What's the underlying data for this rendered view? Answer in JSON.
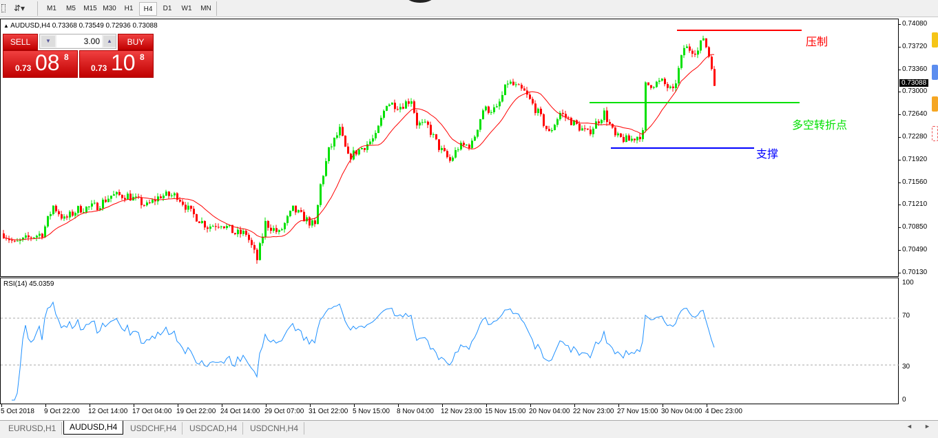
{
  "toolbar": {
    "timeframes": [
      "M1",
      "M5",
      "M15",
      "M30",
      "H1",
      "H4",
      "D1",
      "W1",
      "MN"
    ],
    "active": "H4"
  },
  "chart": {
    "info": "AUDUSD,H4  0.73368 0.73549 0.72936 0.73088",
    "current_price": "0.73088",
    "price_labels": [
      "0.74080",
      "0.73720",
      "0.73360",
      "0.73000",
      "0.72640",
      "0.72280",
      "0.71920",
      "0.71560",
      "0.71210",
      "0.70850",
      "0.70490",
      "0.70130"
    ],
    "time_labels": [
      "5 Oct 2018",
      "9 Oct 22:00",
      "12 Oct 14:00",
      "17 Oct 04:00",
      "19 Oct 22:00",
      "24 Oct 14:00",
      "29 Oct 07:00",
      "31 Oct 22:00",
      "5 Nov 15:00",
      "8 Nov 04:00",
      "12 Nov 23:00",
      "15 Nov 15:00",
      "20 Nov 04:00",
      "22 Nov 23:00",
      "27 Nov 15:00",
      "30 Nov 04:00",
      "4 Dec 23:00"
    ],
    "colors": {
      "bull": "#00e000",
      "bear": "#ff0000",
      "ma": "#ff0000",
      "rsi": "#1e90ff"
    },
    "annotations": [
      {
        "text": "压制",
        "color": "#ff0000",
        "price": 0.7397
      },
      {
        "text": "多空转折点",
        "color": "#00e000",
        "price": 0.72822
      },
      {
        "text": "支撑",
        "color": "#0000ff",
        "price": 0.721
      }
    ]
  },
  "trade_panel": {
    "sell_label": "SELL",
    "buy_label": "BUY",
    "lots": "3.00",
    "sell_prefix": "0.73",
    "sell_big": "08",
    "sell_sup": "8",
    "buy_prefix": "0.73",
    "buy_big": "10",
    "buy_sup": "8"
  },
  "rsi": {
    "label": "RSI(14) 45.0359",
    "levels": [
      "100",
      "70",
      "30",
      "0"
    ]
  },
  "chart_data": {
    "type": "candlestick",
    "symbol": "AUDUSD",
    "timeframe": "H4",
    "ylim": [
      0.7013,
      0.7408
    ],
    "price_path": [
      [
        0,
        0.70743
      ],
      [
        4,
        0.70579
      ],
      [
        10,
        0.70689
      ],
      [
        14,
        0.70743
      ],
      [
        18,
        0.71181
      ],
      [
        22,
        0.70962
      ],
      [
        27,
        0.71126
      ],
      [
        34,
        0.71181
      ],
      [
        39,
        0.71345
      ],
      [
        45,
        0.71345
      ],
      [
        52,
        0.71181
      ],
      [
        57,
        0.71345
      ],
      [
        63,
        0.71345
      ],
      [
        68,
        0.71071
      ],
      [
        74,
        0.70853
      ],
      [
        79,
        0.70907
      ],
      [
        84,
        0.70743
      ],
      [
        88,
        0.70743
      ],
      [
        92,
        0.70328
      ],
      [
        95,
        0.70907
      ],
      [
        100,
        0.70743
      ],
      [
        105,
        0.71126
      ],
      [
        113,
        0.70853
      ],
      [
        115,
        0.71509
      ],
      [
        118,
        0.72056
      ],
      [
        122,
        0.72384
      ],
      [
        125,
        0.71947
      ],
      [
        132,
        0.72165
      ],
      [
        135,
        0.72275
      ],
      [
        139,
        0.72822
      ],
      [
        144,
        0.72767
      ],
      [
        148,
        0.72877
      ],
      [
        150,
        0.72494
      ],
      [
        154,
        0.72439
      ],
      [
        158,
        0.72111
      ],
      [
        162,
        0.71892
      ],
      [
        165,
        0.72111
      ],
      [
        170,
        0.72165
      ],
      [
        174,
        0.72712
      ],
      [
        179,
        0.72712
      ],
      [
        183,
        0.7315
      ],
      [
        189,
        0.72986
      ],
      [
        194,
        0.72658
      ],
      [
        198,
        0.7233
      ],
      [
        202,
        0.72658
      ],
      [
        207,
        0.72494
      ],
      [
        212,
        0.7233
      ],
      [
        218,
        0.72658
      ],
      [
        222,
        0.72275
      ],
      [
        227,
        0.7222
      ],
      [
        232,
        0.7233
      ],
      [
        233,
        0.73095
      ],
      [
        239,
        0.7315
      ],
      [
        243,
        0.72986
      ],
      [
        247,
        0.73697
      ],
      [
        252,
        0.73642
      ],
      [
        254,
        0.73861
      ],
      [
        257,
        0.73424
      ],
      [
        258,
        0.73088
      ]
    ],
    "ma_period": 14,
    "rsi_period": 14,
    "rsi_last": 45.0359,
    "rsi_levels": [
      30,
      70
    ],
    "horizontal_lines": [
      0.7397,
      0.72822,
      0.721
    ]
  },
  "tabs": [
    "EURUSD,H1",
    "AUDUSD,H4",
    "USDCHF,H4",
    "USDCAD,H4",
    "USDCNH,H4"
  ],
  "active_tab": "AUDUSD,H4"
}
